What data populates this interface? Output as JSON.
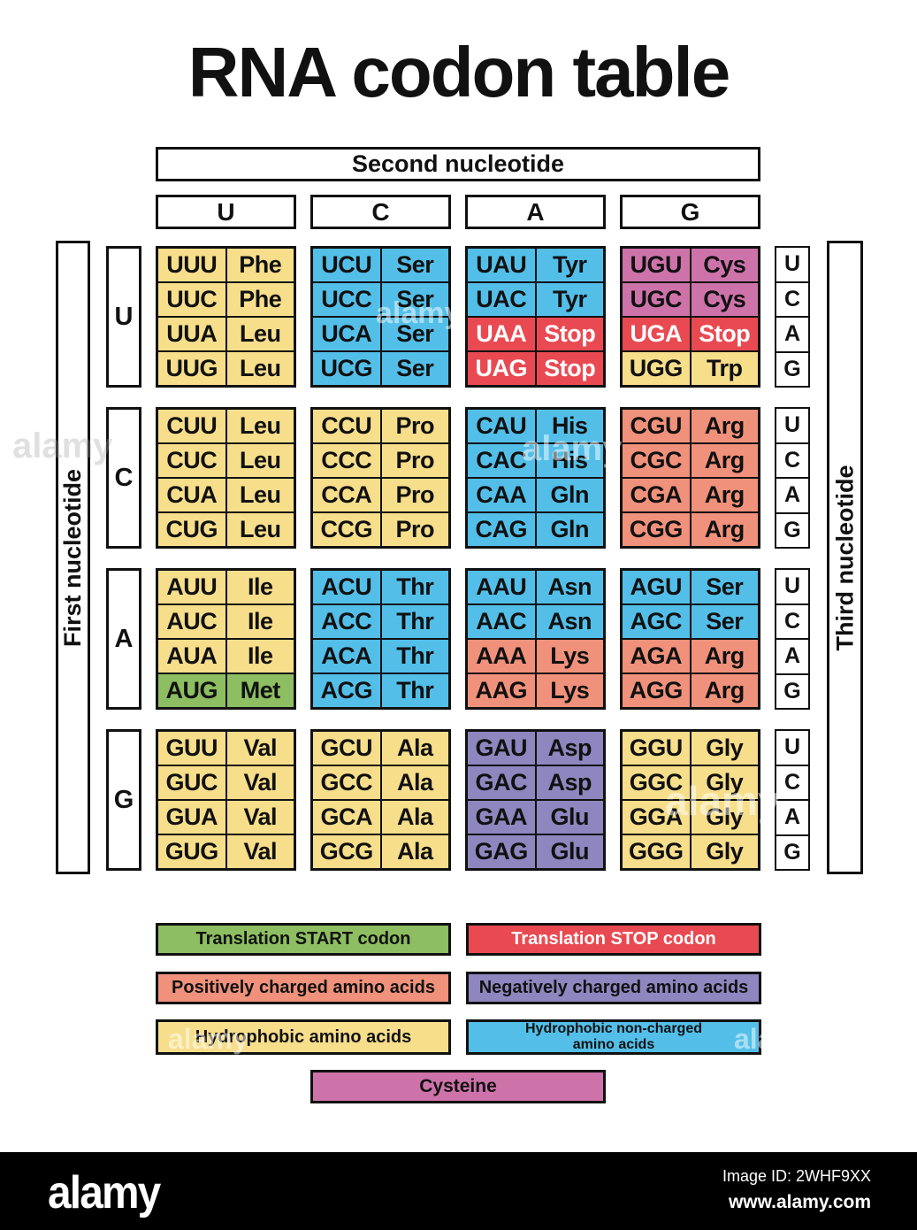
{
  "title": "RNA codon table",
  "header": {
    "second_nucleotide": "Second nucleotide",
    "first_nucleotide": "First nucleotide",
    "third_nucleotide": "Third nucleotide"
  },
  "column_headers": [
    "U",
    "C",
    "A",
    "G"
  ],
  "row_headers": [
    "U",
    "C",
    "A",
    "G"
  ],
  "third_nucleotide_letters": [
    "U",
    "C",
    "A",
    "G"
  ],
  "colors": {
    "start": "#8DBE61",
    "stop": "#E94A52",
    "positive": "#F0917B",
    "negative": "#8E86BE",
    "hydrophobic": "#F7DE8B",
    "noncharged": "#53BFE9",
    "cysteine": "#CE73AA"
  },
  "codon_groups": [
    {
      "first": "U",
      "columns": [
        {
          "second": "U",
          "cells": [
            {
              "codon": "UUU",
              "amino": "Phe",
              "type": "hydrophobic"
            },
            {
              "codon": "UUC",
              "amino": "Phe",
              "type": "hydrophobic"
            },
            {
              "codon": "UUA",
              "amino": "Leu",
              "type": "hydrophobic"
            },
            {
              "codon": "UUG",
              "amino": "Leu",
              "type": "hydrophobic"
            }
          ]
        },
        {
          "second": "C",
          "cells": [
            {
              "codon": "UCU",
              "amino": "Ser",
              "type": "noncharged"
            },
            {
              "codon": "UCC",
              "amino": "Ser",
              "type": "noncharged"
            },
            {
              "codon": "UCA",
              "amino": "Ser",
              "type": "noncharged"
            },
            {
              "codon": "UCG",
              "amino": "Ser",
              "type": "noncharged"
            }
          ]
        },
        {
          "second": "A",
          "cells": [
            {
              "codon": "UAU",
              "amino": "Tyr",
              "type": "noncharged"
            },
            {
              "codon": "UAC",
              "amino": "Tyr",
              "type": "noncharged"
            },
            {
              "codon": "UAA",
              "amino": "Stop",
              "type": "stop"
            },
            {
              "codon": "UAG",
              "amino": "Stop",
              "type": "stop"
            }
          ]
        },
        {
          "second": "G",
          "cells": [
            {
              "codon": "UGU",
              "amino": "Cys",
              "type": "cysteine"
            },
            {
              "codon": "UGC",
              "amino": "Cys",
              "type": "cysteine"
            },
            {
              "codon": "UGA",
              "amino": "Stop",
              "type": "stop"
            },
            {
              "codon": "UGG",
              "amino": "Trp",
              "type": "hydrophobic"
            }
          ]
        }
      ]
    },
    {
      "first": "C",
      "columns": [
        {
          "second": "U",
          "cells": [
            {
              "codon": "CUU",
              "amino": "Leu",
              "type": "hydrophobic"
            },
            {
              "codon": "CUC",
              "amino": "Leu",
              "type": "hydrophobic"
            },
            {
              "codon": "CUA",
              "amino": "Leu",
              "type": "hydrophobic"
            },
            {
              "codon": "CUG",
              "amino": "Leu",
              "type": "hydrophobic"
            }
          ]
        },
        {
          "second": "C",
          "cells": [
            {
              "codon": "CCU",
              "amino": "Pro",
              "type": "hydrophobic"
            },
            {
              "codon": "CCC",
              "amino": "Pro",
              "type": "hydrophobic"
            },
            {
              "codon": "CCA",
              "amino": "Pro",
              "type": "hydrophobic"
            },
            {
              "codon": "CCG",
              "amino": "Pro",
              "type": "hydrophobic"
            }
          ]
        },
        {
          "second": "A",
          "cells": [
            {
              "codon": "CAU",
              "amino": "His",
              "type": "noncharged"
            },
            {
              "codon": "CAC",
              "amino": "His",
              "type": "noncharged"
            },
            {
              "codon": "CAA",
              "amino": "Gln",
              "type": "noncharged"
            },
            {
              "codon": "CAG",
              "amino": "Gln",
              "type": "noncharged"
            }
          ]
        },
        {
          "second": "G",
          "cells": [
            {
              "codon": "CGU",
              "amino": "Arg",
              "type": "positive"
            },
            {
              "codon": "CGC",
              "amino": "Arg",
              "type": "positive"
            },
            {
              "codon": "CGA",
              "amino": "Arg",
              "type": "positive"
            },
            {
              "codon": "CGG",
              "amino": "Arg",
              "type": "positive"
            }
          ]
        }
      ]
    },
    {
      "first": "A",
      "columns": [
        {
          "second": "U",
          "cells": [
            {
              "codon": "AUU",
              "amino": "Ile",
              "type": "hydrophobic"
            },
            {
              "codon": "AUC",
              "amino": "Ile",
              "type": "hydrophobic"
            },
            {
              "codon": "AUA",
              "amino": "Ile",
              "type": "hydrophobic"
            },
            {
              "codon": "AUG",
              "amino": "Met",
              "type": "start"
            }
          ]
        },
        {
          "second": "C",
          "cells": [
            {
              "codon": "ACU",
              "amino": "Thr",
              "type": "noncharged"
            },
            {
              "codon": "ACC",
              "amino": "Thr",
              "type": "noncharged"
            },
            {
              "codon": "ACA",
              "amino": "Thr",
              "type": "noncharged"
            },
            {
              "codon": "ACG",
              "amino": "Thr",
              "type": "noncharged"
            }
          ]
        },
        {
          "second": "A",
          "cells": [
            {
              "codon": "AAU",
              "amino": "Asn",
              "type": "noncharged"
            },
            {
              "codon": "AAC",
              "amino": "Asn",
              "type": "noncharged"
            },
            {
              "codon": "AAA",
              "amino": "Lys",
              "type": "positive"
            },
            {
              "codon": "AAG",
              "amino": "Lys",
              "type": "positive"
            }
          ]
        },
        {
          "second": "G",
          "cells": [
            {
              "codon": "AGU",
              "amino": "Ser",
              "type": "noncharged"
            },
            {
              "codon": "AGC",
              "amino": "Ser",
              "type": "noncharged"
            },
            {
              "codon": "AGA",
              "amino": "Arg",
              "type": "positive"
            },
            {
              "codon": "AGG",
              "amino": "Arg",
              "type": "positive"
            }
          ]
        }
      ]
    },
    {
      "first": "G",
      "columns": [
        {
          "second": "U",
          "cells": [
            {
              "codon": "GUU",
              "amino": "Val",
              "type": "hydrophobic"
            },
            {
              "codon": "GUC",
              "amino": "Val",
              "type": "hydrophobic"
            },
            {
              "codon": "GUA",
              "amino": "Val",
              "type": "hydrophobic"
            },
            {
              "codon": "GUG",
              "amino": "Val",
              "type": "hydrophobic"
            }
          ]
        },
        {
          "second": "C",
          "cells": [
            {
              "codon": "GCU",
              "amino": "Ala",
              "type": "hydrophobic"
            },
            {
              "codon": "GCC",
              "amino": "Ala",
              "type": "hydrophobic"
            },
            {
              "codon": "GCA",
              "amino": "Ala",
              "type": "hydrophobic"
            },
            {
              "codon": "GCG",
              "amino": "Ala",
              "type": "hydrophobic"
            }
          ]
        },
        {
          "second": "A",
          "cells": [
            {
              "codon": "GAU",
              "amino": "Asp",
              "type": "negative"
            },
            {
              "codon": "GAC",
              "amino": "Asp",
              "type": "negative"
            },
            {
              "codon": "GAA",
              "amino": "Glu",
              "type": "negative"
            },
            {
              "codon": "GAG",
              "amino": "Glu",
              "type": "negative"
            }
          ]
        },
        {
          "second": "G",
          "cells": [
            {
              "codon": "GGU",
              "amino": "Gly",
              "type": "hydrophobic"
            },
            {
              "codon": "GGC",
              "amino": "Gly",
              "type": "hydrophobic"
            },
            {
              "codon": "GGA",
              "amino": "Gly",
              "type": "hydrophobic"
            },
            {
              "codon": "GGG",
              "amino": "Gly",
              "type": "hydrophobic"
            }
          ]
        }
      ]
    }
  ],
  "legend": [
    {
      "label": "Translation START codon",
      "type": "start",
      "white_text": false
    },
    {
      "label": "Translation STOP codon",
      "type": "stop",
      "white_text": true
    },
    {
      "label": "Positively charged amino acids",
      "type": "positive",
      "white_text": false
    },
    {
      "label": "Negatively charged amino acids",
      "type": "negative",
      "white_text": false
    },
    {
      "label": "Hydrophobic amino acids",
      "type": "hydrophobic",
      "white_text": false
    },
    {
      "label": "Hydrophobic non-charged amino acids",
      "type": "noncharged",
      "white_text": false
    },
    {
      "label": "Cysteine",
      "type": "cysteine",
      "white_text": false
    }
  ],
  "watermark_text": "alamy",
  "footer": {
    "logo": "alamy",
    "image_id": "Image ID: 2WHF9XX",
    "website": "www.alamy.com"
  }
}
